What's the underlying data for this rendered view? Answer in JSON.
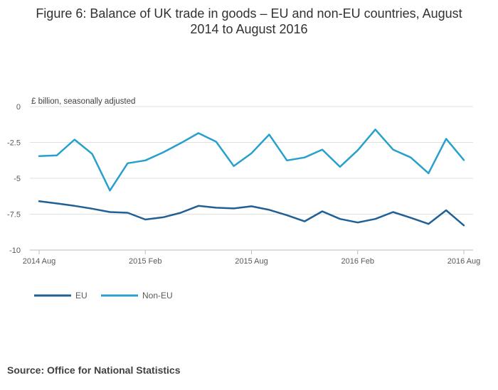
{
  "title_line1": "Figure 6: Balance of UK trade in goods – EU and non-EU countries, August",
  "title_line2": "2014 to August 2016",
  "source": "Source: Office for National Statistics",
  "colors": {
    "eu": "#206095",
    "non_eu": "#27a0cc",
    "grid": "#e0e0e0",
    "axis": "#bcbcbc"
  },
  "chart_data": {
    "type": "line",
    "ylabel": "£ billion, seasonally adjusted",
    "ylim": [
      -10,
      0
    ],
    "yticks": [
      0,
      -2.5,
      -5,
      -7.5,
      -10
    ],
    "ytick_labels": [
      "0",
      "-2.5",
      "-5",
      "-7.5",
      "-10"
    ],
    "xtick_labels": [
      "2014 Aug",
      "2015 Feb",
      "2015 Aug",
      "2016 Feb",
      "2016 Aug"
    ],
    "xtick_index": [
      0,
      6,
      12,
      18,
      24
    ],
    "x": [
      "2014 Aug",
      "2014 Sep",
      "2014 Oct",
      "2014 Nov",
      "2014 Dec",
      "2015 Jan",
      "2015 Feb",
      "2015 Mar",
      "2015 Apr",
      "2015 May",
      "2015 Jun",
      "2015 Jul",
      "2015 Aug",
      "2015 Sep",
      "2015 Oct",
      "2015 Nov",
      "2015 Dec",
      "2016 Jan",
      "2016 Feb",
      "2016 Mar",
      "2016 Apr",
      "2016 May",
      "2016 Jun",
      "2016 Jul",
      "2016 Aug"
    ],
    "grid": true,
    "legend": "bottom-left",
    "series": [
      {
        "name": "EU",
        "color": "#206095",
        "values": [
          -6.6,
          -6.75,
          -6.92,
          -7.12,
          -7.35,
          -7.4,
          -7.87,
          -7.72,
          -7.4,
          -6.92,
          -7.05,
          -7.1,
          -6.95,
          -7.2,
          -7.57,
          -8.0,
          -7.3,
          -7.83,
          -8.08,
          -7.83,
          -7.35,
          -7.75,
          -8.18,
          -7.23,
          -8.28
        ]
      },
      {
        "name": "Non-EU",
        "color": "#27a0cc",
        "values": [
          -3.45,
          -3.4,
          -2.3,
          -3.3,
          -5.85,
          -3.95,
          -3.75,
          -3.2,
          -2.55,
          -1.85,
          -2.45,
          -4.15,
          -3.25,
          -1.95,
          -3.75,
          -3.55,
          -3.0,
          -4.2,
          -3.05,
          -1.6,
          -3.0,
          -3.55,
          -4.65,
          -2.25,
          -3.73
        ]
      }
    ]
  }
}
